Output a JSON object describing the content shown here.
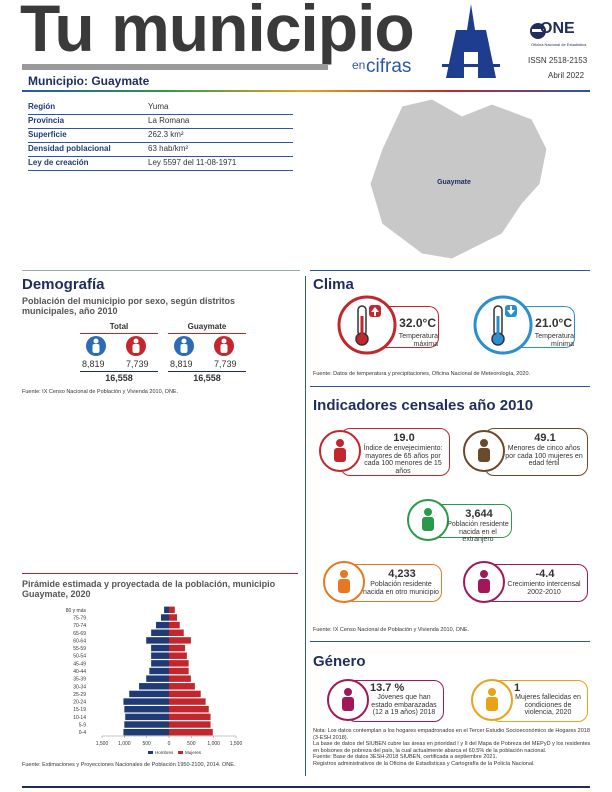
{
  "header": {
    "title": "Tu municipio",
    "sub_small": "en",
    "sub": "cifras",
    "logo": "ONE",
    "logo_full": "Oficina Nacional de Estadística",
    "issn": "ISSN  2518-2153",
    "date": "Abril 2022",
    "municipio": "Municipio: Guaymate"
  },
  "info": {
    "rows": [
      [
        "Región",
        "Yuma"
      ],
      [
        "Provincia",
        "La Romana"
      ],
      [
        "Superficie",
        "262.3 km²"
      ],
      [
        "Densidad poblacional",
        "63 hab/km²"
      ],
      [
        "Ley de creación",
        "Ley 5597 del 11-08-1971"
      ]
    ],
    "map_label": "Guaymate"
  },
  "demografia": {
    "title": "Demografía",
    "subtitle": "Población del municipio por sexo, según distritos municipales, año 2010",
    "groups": [
      {
        "name": "Total",
        "male": "8,819",
        "female": "7,739",
        "total": "16,558"
      },
      {
        "name": "Guaymate",
        "male": "8,819",
        "female": "7,739",
        "total": "16,558"
      }
    ],
    "source": "Fuente: IX Censo Nacional de Población y Vivienda 2010, ONE."
  },
  "chart_data": {
    "type": "pyramid",
    "title": "Pirámide estimada y proyectada de la población, municipio Guaymate, 2020",
    "categories": [
      "0-4",
      "5-9",
      "10-14",
      "15-19",
      "20-24",
      "25-29",
      "30-34",
      "35-39",
      "40-44",
      "45-49",
      "50-54",
      "55-59",
      "60-64",
      "65-69",
      "70-74",
      "75-79",
      "80 y más"
    ],
    "series": [
      {
        "name": "Hombres",
        "color": "#1f3a75",
        "values": [
          -1020,
          -1000,
          -980,
          -1000,
          -1020,
          -890,
          -670,
          -510,
          -440,
          -400,
          -400,
          -400,
          -510,
          -400,
          -290,
          -180,
          -110
        ]
      },
      {
        "name": "Mujeres",
        "color": "#c4262e",
        "values": [
          980,
          930,
          930,
          890,
          820,
          710,
          580,
          490,
          440,
          440,
          400,
          360,
          490,
          330,
          240,
          180,
          130
        ]
      }
    ],
    "xlim": [
      -1500,
      1500
    ],
    "xticks": [
      {
        "value": -1500,
        "label": "1,500"
      },
      {
        "value": -1000,
        "label": "1,000"
      },
      {
        "value": -500,
        "label": "500"
      },
      0,
      500,
      {
        "value": 1000,
        "label": "1,000"
      },
      {
        "value": 1500,
        "label": "1,500"
      }
    ],
    "source": "Fuente: Estimaciones y Proyecciones Nacionales de Población 1950-2100, 2014. ONE."
  },
  "clima": {
    "title": "Clima",
    "items": [
      {
        "value": "32.0°C",
        "label": "Temperatura máxima"
      },
      {
        "value": "21.0°C",
        "label": "Temperatura mínima"
      }
    ],
    "source": "Fuente: Datos de temperatura y precipitaciones, Oficina Nacional de Meteorología, 2020."
  },
  "indicadores": {
    "title": "Indicadores censales año 2010",
    "items": [
      {
        "value": "19.0",
        "label": "Índice de envejecimiento: mayores de 65 años por cada 100 menores de 15 años"
      },
      {
        "value": "49.1",
        "label": "Menores de cinco años por cada 100 mujeres en edad fértil"
      },
      {
        "value": "3,644",
        "label": "Población residente nacida en el extranjero"
      },
      {
        "value": "4,233",
        "label": "Población residente nacida en otro municipio"
      },
      {
        "value": "-4.4",
        "label": "Crecimiento intercensal 2002-2010"
      }
    ],
    "source": "Fuente: IX Censo Nacional de Población y Vivienda 2010, ONE."
  },
  "genero": {
    "title": "Género",
    "items": [
      {
        "value": "13.7 %",
        "label": "Jóvenes que han estado embarazadas (12 a 19 años) 2018"
      },
      {
        "value": "1",
        "label": "Mujeres fallecidas en condiciones de violencia, 2020"
      }
    ],
    "notes": [
      "Nota: Los datos contemplan a los hogares empadronados en el Tercer Estudio Socioeconómico de Hogares 2018 (3-ESH 2018).",
      "La base de datos del SIUBEN cubre las áreas en prioridad I y II del Mapa de Pobreza del MEPyD y los residentes en bolsones de pobreza del país, la cual actualmente abarca el 60.5% de la población nacional.",
      "Fuente: Base de datos 3ESH-2018 SIUBEN, certificada a septiembre 2021.",
      "Registros administrativos de la Oficina de Estadísticas y Cartografía de la Policía Nacional."
    ]
  }
}
